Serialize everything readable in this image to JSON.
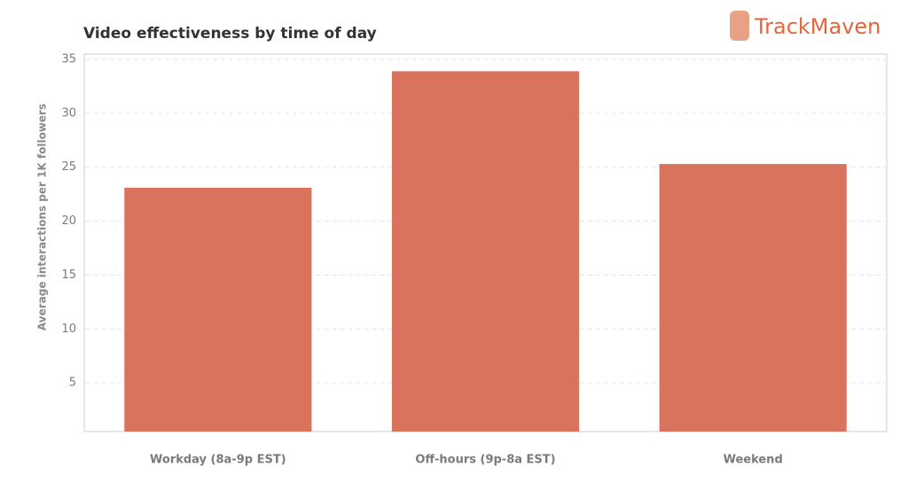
{
  "chart_data": {
    "type": "bar",
    "title": "Video effectiveness by time of day",
    "brand": "TrackMaven",
    "y_label": "Average interactions per 1K followers",
    "categories": [
      "Workday (8a-9p EST)",
      "Off-hours (9p-8a EST)",
      "Weekend"
    ],
    "values": [
      23.1,
      33.9,
      25.3
    ],
    "color": "#d9735e",
    "ylim": [
      0,
      35
    ],
    "yticks": [
      5,
      10,
      15,
      20,
      25,
      30,
      35
    ],
    "grid": true
  }
}
